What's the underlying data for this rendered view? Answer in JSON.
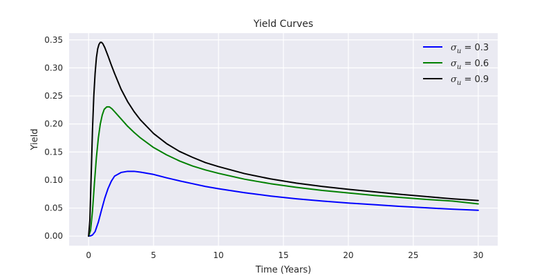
{
  "chart_data": {
    "type": "line",
    "title": "Yield Curves",
    "xlabel": "Time (Years)",
    "ylabel": "Yield",
    "xlim": [
      -1.5,
      31.5
    ],
    "ylim": [
      -0.017,
      0.362
    ],
    "xticks": [
      0,
      5,
      10,
      15,
      20,
      25,
      30
    ],
    "xtick_labels": [
      "0",
      "5",
      "10",
      "15",
      "20",
      "25",
      "30"
    ],
    "yticks": [
      0.0,
      0.05,
      0.1,
      0.15,
      0.2,
      0.25,
      0.3,
      0.35
    ],
    "ytick_labels": [
      "0.00",
      "0.05",
      "0.10",
      "0.15",
      "0.20",
      "0.25",
      "0.30",
      "0.35"
    ],
    "grid": true,
    "legend_position": "top-right",
    "series": [
      {
        "label_var": "σ",
        "label_sub": "u",
        "label_value": " = 0.3",
        "color": "#0000ff",
        "x": [
          0,
          0.15,
          0.3,
          0.5,
          0.75,
          1.0,
          1.25,
          1.5,
          1.75,
          2.0,
          2.5,
          3.0,
          3.5,
          4.0,
          5.0,
          6.0,
          7.0,
          8.0,
          9.0,
          10.0,
          12.0,
          14.0,
          16.0,
          18.0,
          20.0,
          22.0,
          24.0,
          26.0,
          28.0,
          30.0
        ],
        "y": [
          0,
          0.0005,
          0.002,
          0.008,
          0.025,
          0.047,
          0.068,
          0.085,
          0.098,
          0.107,
          0.1135,
          0.1155,
          0.1155,
          0.114,
          0.11,
          0.104,
          0.0985,
          0.0935,
          0.0885,
          0.0845,
          0.0775,
          0.0715,
          0.0665,
          0.0625,
          0.059,
          0.056,
          0.053,
          0.0505,
          0.048,
          0.046
        ]
      },
      {
        "label_var": "σ",
        "label_sub": "u",
        "label_value": " = 0.6",
        "color": "#008000",
        "x": [
          0,
          0.15,
          0.3,
          0.45,
          0.6,
          0.75,
          0.9,
          1.05,
          1.2,
          1.4,
          1.6,
          1.8,
          2.0,
          2.5,
          3.0,
          3.5,
          4.0,
          5.0,
          6.0,
          7.0,
          8.0,
          9.0,
          10.0,
          12.0,
          14.0,
          16.0,
          18.0,
          20.0,
          22.0,
          24.0,
          26.0,
          28.0,
          30.0
        ],
        "y": [
          0,
          0.01,
          0.045,
          0.095,
          0.14,
          0.175,
          0.2,
          0.216,
          0.226,
          0.2305,
          0.2305,
          0.227,
          0.222,
          0.209,
          0.196,
          0.185,
          0.175,
          0.158,
          0.145,
          0.134,
          0.125,
          0.118,
          0.112,
          0.1015,
          0.0935,
          0.087,
          0.0815,
          0.077,
          0.0725,
          0.069,
          0.0655,
          0.0625,
          0.0575
        ]
      },
      {
        "label_var": "σ",
        "label_sub": "u",
        "label_value": " = 0.9",
        "color": "#000000",
        "x": [
          0,
          0.1,
          0.2,
          0.3,
          0.4,
          0.5,
          0.6,
          0.7,
          0.8,
          0.9,
          1.0,
          1.1,
          1.25,
          1.5,
          1.75,
          2.0,
          2.5,
          3.0,
          3.5,
          4.0,
          5.0,
          6.0,
          7.0,
          8.0,
          9.0,
          10.0,
          12.0,
          14.0,
          16.0,
          18.0,
          20.0,
          22.0,
          24.0,
          26.0,
          28.0,
          30.0
        ],
        "y": [
          0,
          0.03,
          0.11,
          0.19,
          0.25,
          0.29,
          0.318,
          0.334,
          0.342,
          0.3455,
          0.3455,
          0.343,
          0.336,
          0.321,
          0.305,
          0.29,
          0.262,
          0.24,
          0.222,
          0.207,
          0.183,
          0.165,
          0.151,
          0.1405,
          0.131,
          0.124,
          0.1115,
          0.102,
          0.0945,
          0.0885,
          0.0835,
          0.079,
          0.0745,
          0.0705,
          0.0665,
          0.0635
        ]
      }
    ]
  }
}
